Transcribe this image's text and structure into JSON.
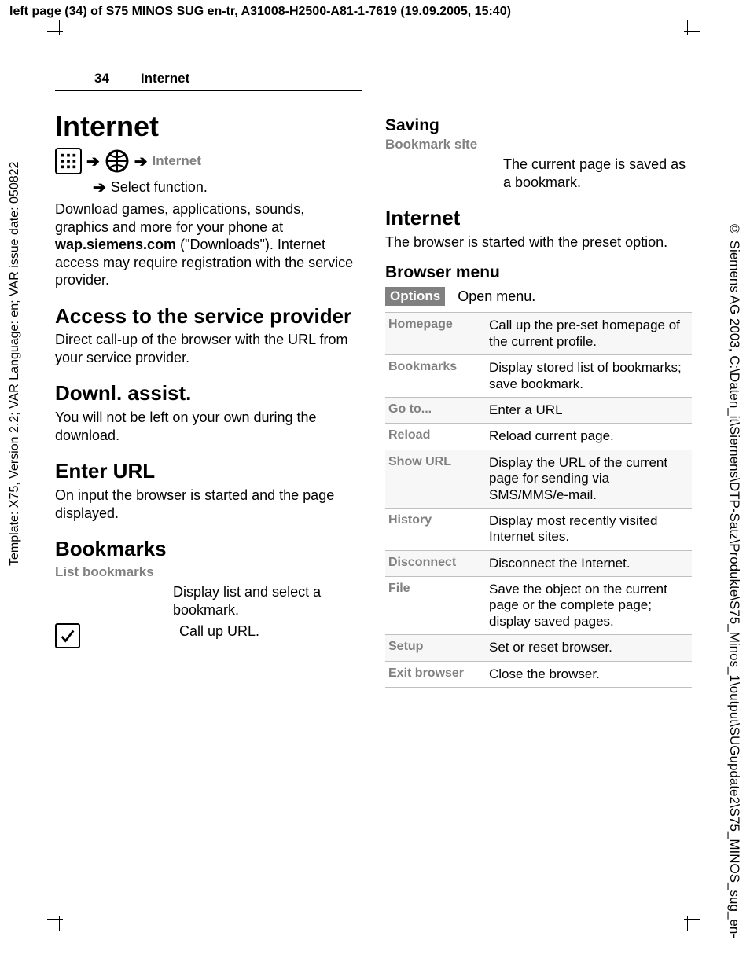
{
  "top_header_prefix": "left page (34)",
  "top_header_rest": " of S75 MINOS SUG en-tr, A31008-H2500-A81-1-7619 (19.09.2005, 15:40)",
  "left_vertical": "Template: X75, Version 2.2; VAR Language: en; VAR issue date: 050822",
  "right_vertical": "© Siemens AG 2003, C:\\Daten_it\\Siemens\\DTP-Satz\\Produkte\\S75_Minos_1\\output\\SUGupdate2\\S75_MINOS_sug_en-",
  "page_number": "34",
  "running_title": "Internet",
  "h1_title": "Internet",
  "nav_internet_label": "Internet",
  "nav_select_function": "Select function.",
  "intro_pre": "Download games, applications, sounds, graphics and more for your phone at ",
  "intro_bold": "wap.siemens.com",
  "intro_post": " (\"Downloads\"). Internet access may require registration with the service provider.",
  "sec_access_title": "Access to the service provider",
  "sec_access_body": "Direct call-up of the browser with the URL from your service provider.",
  "sec_downl_title": "Downl. assist.",
  "sec_downl_body": "You will not be left on your own during the download.",
  "sec_enterurl_title": "Enter URL",
  "sec_enterurl_body": "On input the browser is started and the page displayed.",
  "sec_bookmarks_title": "Bookmarks",
  "bm_list_label": "List bookmarks",
  "bm_list_desc": "Display list and select a bookmark.",
  "bm_call_url": "Call up URL.",
  "sec_saving_title": "Saving",
  "sv_label": "Bookmark site",
  "sv_desc": "The current page is saved as a bookmark.",
  "sec_internet2_title": "Internet",
  "sec_internet2_body": "The browser is started with the preset option.",
  "sec_browsermenu_title": "Browser menu",
  "options_badge": "Options",
  "options_desc": "Open menu.",
  "menu": [
    {
      "k": "Homepage",
      "v": "Call up the pre-set homepage of the current profile."
    },
    {
      "k": "Bookmarks",
      "v": "Display stored list of bookmarks; save bookmark."
    },
    {
      "k": "Go to...",
      "v": "Enter a URL"
    },
    {
      "k": "Reload",
      "v": "Reload current page."
    },
    {
      "k": "Show URL",
      "v": "Display the URL of the current page for sending via SMS/MMS/e-mail."
    },
    {
      "k": "History",
      "v": "Display most recently visited Internet sites."
    },
    {
      "k": "Disconnect",
      "v": "Disconnect the Internet."
    },
    {
      "k": "File",
      "v": "Save the object on the current page or the complete page; display saved pages."
    },
    {
      "k": "Setup",
      "v": "Set or reset browser."
    },
    {
      "k": "Exit browser",
      "v": "Close the browser."
    }
  ]
}
